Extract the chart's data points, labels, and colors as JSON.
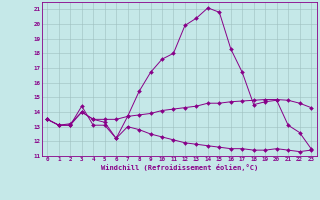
{
  "xlabel": "Windchill (Refroidissement éolien,°C)",
  "background_color": "#c5e8e8",
  "grid_color": "#9fbfbf",
  "line_color": "#880088",
  "xlim": [
    -0.5,
    23.5
  ],
  "ylim": [
    11,
    21.5
  ],
  "yticks": [
    11,
    12,
    13,
    14,
    15,
    16,
    17,
    18,
    19,
    20,
    21
  ],
  "xticks": [
    0,
    1,
    2,
    3,
    4,
    5,
    6,
    7,
    8,
    9,
    10,
    11,
    12,
    13,
    14,
    15,
    16,
    17,
    18,
    19,
    20,
    21,
    22,
    23
  ],
  "line1_x": [
    0,
    1,
    2,
    3,
    4,
    5,
    6,
    7,
    8,
    9,
    10,
    11,
    12,
    13,
    14,
    15,
    16,
    17,
    18,
    19,
    20,
    21,
    22,
    23
  ],
  "line1_y": [
    13.5,
    13.1,
    13.1,
    14.4,
    13.1,
    13.1,
    12.2,
    13.7,
    15.4,
    16.7,
    17.6,
    18.0,
    19.9,
    20.4,
    21.1,
    20.8,
    18.3,
    16.7,
    14.5,
    14.7,
    14.8,
    13.1,
    12.6,
    11.5
  ],
  "line2_x": [
    0,
    1,
    2,
    3,
    4,
    5,
    6,
    7,
    8,
    9,
    10,
    11,
    12,
    13,
    14,
    15,
    16,
    17,
    18,
    19,
    20,
    21,
    22,
    23
  ],
  "line2_y": [
    13.5,
    13.1,
    13.2,
    14.0,
    13.5,
    13.5,
    13.5,
    13.7,
    13.8,
    13.9,
    14.1,
    14.2,
    14.3,
    14.4,
    14.6,
    14.6,
    14.7,
    14.75,
    14.8,
    14.85,
    14.85,
    14.8,
    14.6,
    14.3
  ],
  "line3_x": [
    0,
    1,
    2,
    3,
    4,
    5,
    6,
    7,
    8,
    9,
    10,
    11,
    12,
    13,
    14,
    15,
    16,
    17,
    18,
    19,
    20,
    21,
    22,
    23
  ],
  "line3_y": [
    13.5,
    13.1,
    13.1,
    14.0,
    13.5,
    13.3,
    12.2,
    13.0,
    12.8,
    12.5,
    12.3,
    12.1,
    11.9,
    11.8,
    11.7,
    11.6,
    11.5,
    11.5,
    11.4,
    11.4,
    11.5,
    11.4,
    11.3,
    11.4
  ]
}
